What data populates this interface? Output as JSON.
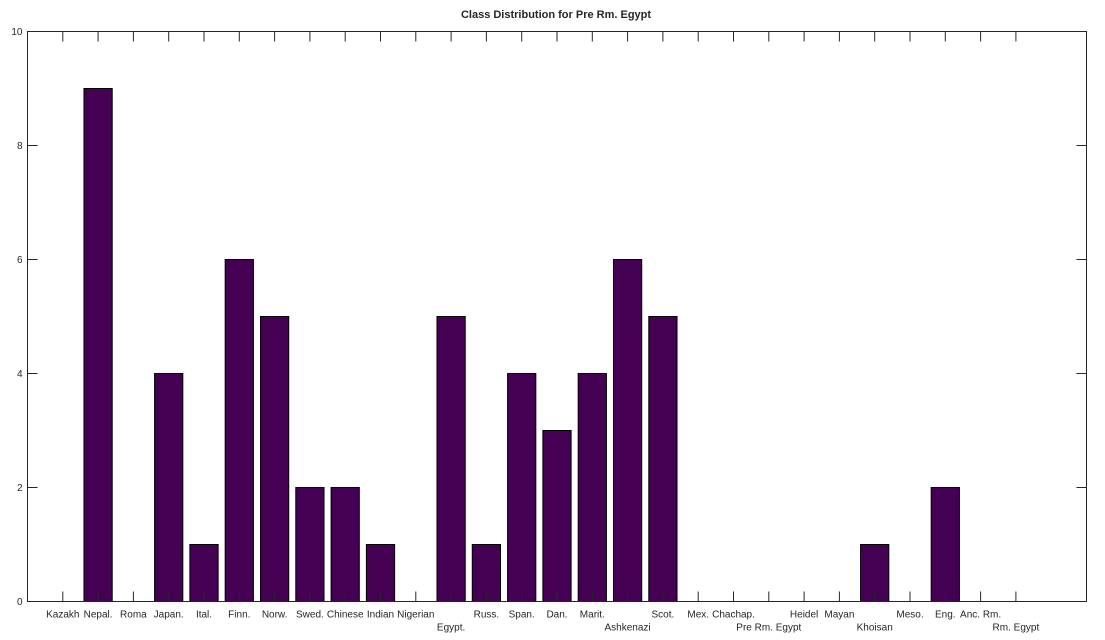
{
  "chart_data": {
    "type": "bar",
    "title": "Class Distribution for Pre Rm. Egypt",
    "xlabel": "",
    "ylabel": "",
    "categories": [
      "Kazakh",
      "Nepal.",
      "Roma",
      "Japan.",
      "Ital.",
      "Finn.",
      "Norw.",
      "Swed.",
      "Chinese",
      "Indian",
      "Nigerian",
      "Egypt.",
      "Russ.",
      "Span.",
      "Dan.",
      "Marit.",
      "Ashkenazi",
      "Scot.",
      "Mex.",
      "Chachap.",
      "Pre Rm. Egypt",
      "Heidel",
      "Mayan",
      "Khoisan",
      "Meso.",
      "Eng.",
      "Anc. Rm.",
      "Rm. Egypt"
    ],
    "values": [
      0,
      9,
      0,
      4,
      1,
      6,
      5,
      2,
      2,
      1,
      0,
      5,
      1,
      4,
      3,
      4,
      6,
      5,
      0,
      0,
      0,
      0,
      0,
      1,
      0,
      2,
      0,
      0
    ],
    "xlim": [
      0,
      30
    ],
    "ylim": [
      0,
      10
    ],
    "yticks": [
      0,
      2,
      4,
      6,
      8,
      10
    ],
    "grid": false,
    "bar_color": "#440154"
  }
}
